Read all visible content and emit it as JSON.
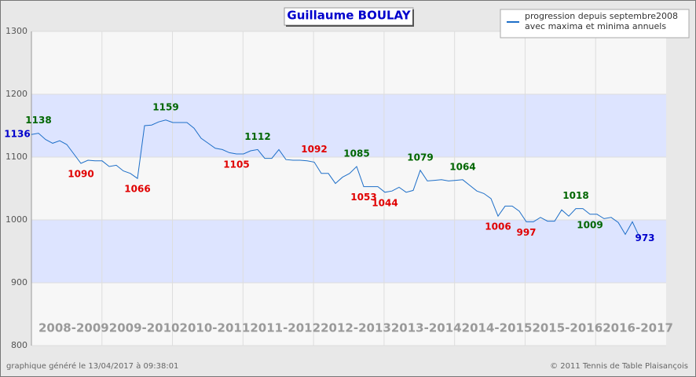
{
  "chart_data": {
    "type": "line",
    "title": "Guillaume BOULAY",
    "legend_lines": [
      "progression depuis septembre2008",
      "avec maxima et minima annuels"
    ],
    "ylim": [
      800,
      1300
    ],
    "yticks": [
      800,
      900,
      1000,
      1100,
      1200,
      1300
    ],
    "grid": true,
    "bands": [
      [
        1100,
        1200
      ],
      [
        900,
        1000
      ]
    ],
    "band_color": "#dde4ff",
    "seasons": [
      "2008-2009",
      "2009-2010",
      "2010-2011",
      "2011-2012",
      "2012-2013",
      "2013-2014",
      "2014-2015",
      "2015-2016",
      "2016-2017"
    ],
    "series": [
      {
        "color": "#1e6fc8",
        "values": [
          1136,
          1138,
          1128,
          1122,
          1126,
          1120,
          1105,
          1090,
          1095,
          1094,
          1094,
          1085,
          1087,
          1078,
          1074,
          1066,
          1150,
          1151,
          1156,
          1159,
          1155,
          1155,
          1155,
          1146,
          1130,
          1122,
          1114,
          1112,
          1107,
          1105,
          1105,
          1110,
          1112,
          1098,
          1098,
          1112,
          1096,
          1095,
          1095,
          1094,
          1092,
          1074,
          1074,
          1058,
          1068,
          1074,
          1085,
          1053,
          1053,
          1053,
          1044,
          1046,
          1052,
          1044,
          1047,
          1079,
          1062,
          1063,
          1064,
          1062,
          1063,
          1064,
          1055,
          1046,
          1042,
          1034,
          1006,
          1022,
          1022,
          1014,
          997,
          997,
          1004,
          998,
          998,
          1016,
          1006,
          1018,
          1018,
          1009,
          1009,
          1002,
          1004,
          996,
          977,
          997,
          973
        ]
      }
    ],
    "highlights": [
      {
        "point": 0,
        "color": "#0000cc"
      },
      {
        "point": 1,
        "color": "#006600"
      },
      {
        "point": 7,
        "color": "#e00000"
      },
      {
        "point": 15,
        "color": "#e00000"
      },
      {
        "point": 19,
        "color": "#006600"
      },
      {
        "point": 29,
        "color": "#e00000"
      },
      {
        "point": 32,
        "color": "#006600"
      },
      {
        "point": 40,
        "color": "#e00000"
      },
      {
        "point": 46,
        "color": "#006600"
      },
      {
        "point": 47,
        "color": "#e00000"
      },
      {
        "point": 50,
        "color": "#e00000"
      },
      {
        "point": 55,
        "color": "#006600"
      },
      {
        "point": 61,
        "color": "#006600"
      },
      {
        "point": 66,
        "color": "#e00000"
      },
      {
        "point": 70,
        "color": "#e00000"
      },
      {
        "point": 77,
        "color": "#006600"
      },
      {
        "point": 79,
        "color": "#006600"
      },
      {
        "point": 86,
        "color": "#0000cc"
      }
    ],
    "footer_left": "graphique généré le 13/04/2017 à 09:38:01",
    "footer_right": "© 2011 Tennis de Table Plaisançois"
  }
}
